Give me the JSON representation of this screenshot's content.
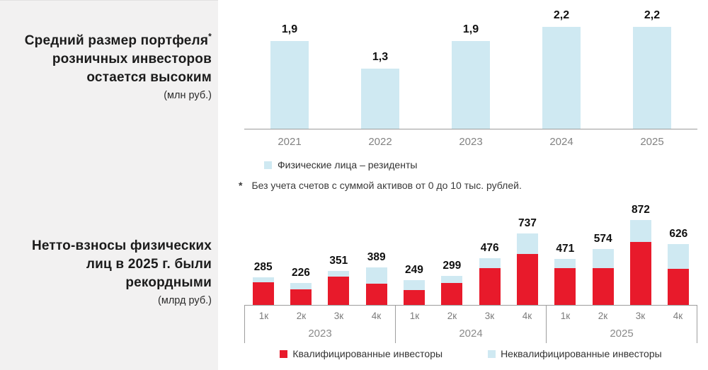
{
  "panel": {
    "chart1_title_pre": "Средний размер портфеля",
    "chart1_title_star": "*",
    "chart1_title_post": " розничных инвесторов остается высоким",
    "chart1_unit": "(млн руб.)",
    "chart2_title": "Нетто-взносы физических лиц в 2025 г. были рекордными",
    "chart2_unit": "(млрд руб.)"
  },
  "footnote": {
    "marker": "*",
    "text": "Без учета счетов с суммой активов от 0 до 10 тыс. рублей."
  },
  "chart_data": [
    {
      "type": "bar",
      "title": "Средний размер портфеля розничных инвесторов остается высоким",
      "unit": "млн руб.",
      "categories": [
        "2021",
        "2022",
        "2023",
        "2024",
        "2025"
      ],
      "values": [
        1.9,
        1.3,
        1.9,
        2.2,
        2.2
      ],
      "value_labels": [
        "1,9",
        "1,3",
        "1,9",
        "2,2",
        "2,2"
      ],
      "bar_color": "#cfe9f2",
      "ylim": [
        0,
        2.4
      ],
      "grid": false,
      "legend": [
        {
          "label": "Физические лица – резиденты",
          "color": "#cfe9f2"
        }
      ],
      "legend_position": "bottom-left"
    },
    {
      "type": "stacked-bar",
      "title": "Нетто-взносы физических лиц в 2025 г. были рекордными",
      "unit": "млрд руб.",
      "ylim": [
        0,
        900
      ],
      "grid": false,
      "series": [
        {
          "name": "Квалифицированные инвесторы",
          "color": "#e81a2b"
        },
        {
          "name": "Неквалифицированные инвесторы",
          "color": "#cfe9f2"
        }
      ],
      "legend_position": "bottom-center",
      "groups": [
        {
          "year": "2023",
          "quarters": [
            "1к",
            "2к",
            "3к",
            "4к"
          ],
          "totals": [
            285,
            226,
            351,
            389
          ],
          "qualified_est": [
            235,
            160,
            290,
            220
          ],
          "unqualified_est": [
            50,
            66,
            61,
            169
          ]
        },
        {
          "year": "2024",
          "quarters": [
            "1к",
            "2к",
            "3к",
            "4к"
          ],
          "totals": [
            249,
            299,
            476,
            737
          ],
          "qualified_est": [
            150,
            225,
            375,
            525
          ],
          "unqualified_est": [
            99,
            74,
            101,
            212
          ]
        },
        {
          "year": "2025",
          "quarters": [
            "1к",
            "2к",
            "3к",
            "4к"
          ],
          "totals": [
            471,
            574,
            872,
            626
          ],
          "qualified_est": [
            375,
            380,
            650,
            370
          ],
          "unqualified_est": [
            96,
            194,
            222,
            256
          ]
        }
      ]
    }
  ]
}
